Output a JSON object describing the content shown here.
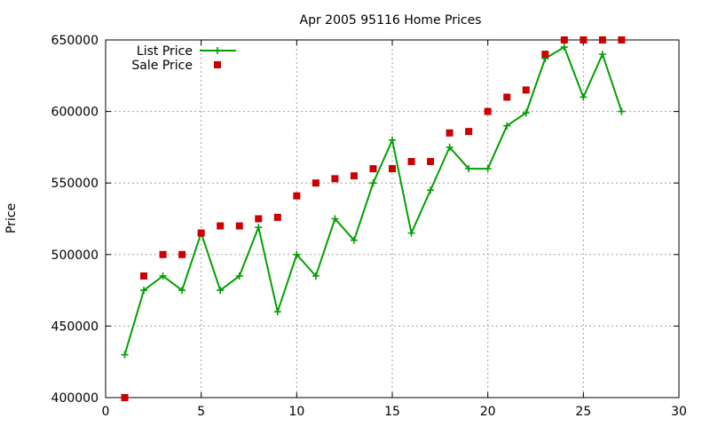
{
  "chart_data": {
    "type": "line",
    "title": "Apr 2005 95116 Home Prices",
    "xlabel": "",
    "ylabel": "Price",
    "xlim": [
      0,
      30
    ],
    "ylim": [
      400000,
      650000
    ],
    "xticks": [
      0,
      5,
      10,
      15,
      20,
      25,
      30
    ],
    "yticks": [
      400000,
      450000,
      500000,
      550000,
      600000,
      650000
    ],
    "xtick_labels": [
      "0",
      "5",
      "10",
      "15",
      "20",
      "25",
      "30"
    ],
    "ytick_labels": [
      "400000",
      "450000",
      "500000",
      "550000",
      "600000",
      "650000"
    ],
    "grid": true,
    "legend_position": "top-left",
    "series": [
      {
        "name": "List Price",
        "style": "line+cross",
        "color": "#00a000",
        "x": [
          1,
          2,
          3,
          4,
          5,
          6,
          7,
          8,
          9,
          10,
          11,
          12,
          13,
          14,
          15,
          16,
          17,
          18,
          19,
          20,
          21,
          22,
          23,
          24,
          25,
          26,
          27
        ],
        "y": [
          430000,
          475000,
          485000,
          475000,
          515000,
          475000,
          485000,
          519000,
          460000,
          500000,
          485000,
          525000,
          510000,
          550000,
          580000,
          515000,
          545000,
          575000,
          560000,
          560000,
          590000,
          599000,
          637000,
          645000,
          610000,
          640000,
          600000
        ]
      },
      {
        "name": "Sale Price",
        "style": "square",
        "color": "#cc0000",
        "x": [
          1,
          2,
          3,
          4,
          5,
          6,
          7,
          8,
          9,
          10,
          11,
          12,
          13,
          14,
          15,
          16,
          17,
          18,
          19,
          20,
          21,
          22,
          23,
          24,
          25,
          26,
          27
        ],
        "y": [
          400000,
          485000,
          500000,
          500000,
          515000,
          520000,
          520000,
          525000,
          526000,
          541000,
          550000,
          553000,
          555000,
          560000,
          560000,
          565000,
          565000,
          585000,
          586000,
          600000,
          610000,
          615000,
          640000,
          650000,
          650000,
          650000,
          650000
        ]
      }
    ]
  }
}
